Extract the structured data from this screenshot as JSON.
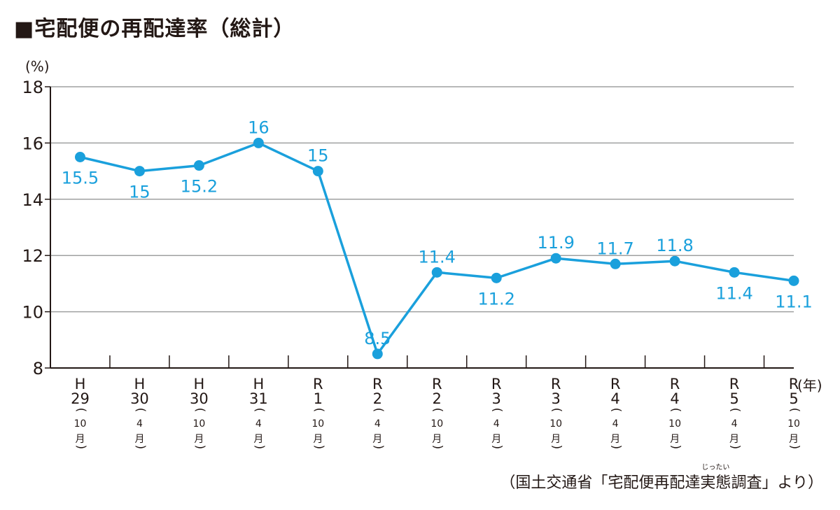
{
  "chart_data": {
    "type": "line",
    "title": "■宅配便の再配達率（総計）",
    "y_unit": "(%)",
    "x_unit": "(年)",
    "ylim": [
      8,
      18
    ],
    "yticks": [
      8,
      10,
      12,
      14,
      16,
      18
    ],
    "grid": true,
    "categories": [
      {
        "era": "H",
        "year": "29",
        "month": "10",
        "month_suffix": "月"
      },
      {
        "era": "H",
        "year": "30",
        "month": "4",
        "month_suffix": "月"
      },
      {
        "era": "H",
        "year": "30",
        "month": "10",
        "month_suffix": "月"
      },
      {
        "era": "H",
        "year": "31",
        "month": "4",
        "month_suffix": "月"
      },
      {
        "era": "R",
        "year": "1",
        "month": "10",
        "month_suffix": "月"
      },
      {
        "era": "R",
        "year": "2",
        "month": "4",
        "month_suffix": "月"
      },
      {
        "era": "R",
        "year": "2",
        "month": "10",
        "month_suffix": "月"
      },
      {
        "era": "R",
        "year": "3",
        "month": "4",
        "month_suffix": "月"
      },
      {
        "era": "R",
        "year": "3",
        "month": "10",
        "month_suffix": "月"
      },
      {
        "era": "R",
        "year": "4",
        "month": "4",
        "month_suffix": "月"
      },
      {
        "era": "R",
        "year": "4",
        "month": "10",
        "month_suffix": "月"
      },
      {
        "era": "R",
        "year": "5",
        "month": "4",
        "month_suffix": "月"
      },
      {
        "era": "R",
        "year": "5",
        "month": "10",
        "month_suffix": "月"
      }
    ],
    "series": [
      {
        "values": [
          15.5,
          15,
          15.2,
          16,
          15,
          8.5,
          11.4,
          11.2,
          11.9,
          11.7,
          11.8,
          11.4,
          11.1
        ],
        "labels": [
          "15.5",
          "15",
          "15.2",
          "16",
          "15",
          "8.5",
          "11.4",
          "11.2",
          "11.9",
          "11.7",
          "11.8",
          "11.4",
          "11.1"
        ],
        "label_positions": [
          "below",
          "below",
          "below",
          "above",
          "above",
          "above",
          "above",
          "below",
          "above",
          "above",
          "above",
          "below",
          "below"
        ],
        "color": "#1aa0dc"
      }
    ],
    "axis_color": "#231815",
    "grid_color": "#9fa0a0"
  },
  "source": {
    "prefix": "（国土交通省「宅配便再配達",
    "ruby_base": "実態",
    "ruby_text": "じったい",
    "suffix": "調査」より）"
  }
}
